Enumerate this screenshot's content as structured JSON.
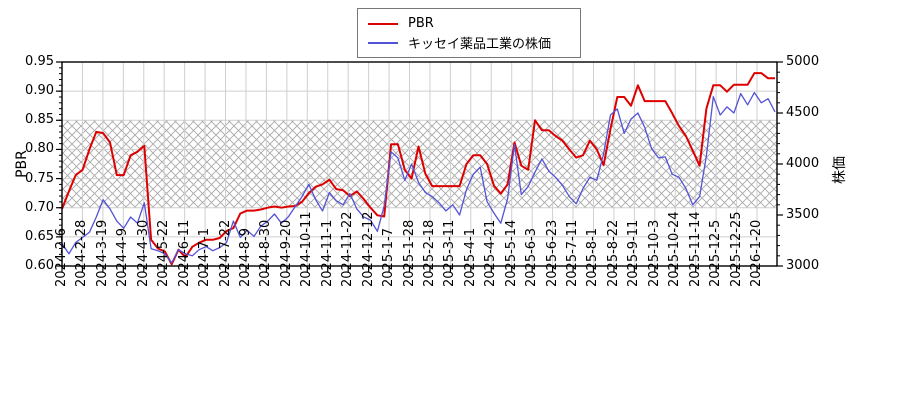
{
  "chart_data": {
    "type": "line",
    "title": "",
    "grid": true,
    "legend_position": "top-center",
    "left_axis": {
      "label": "PBR",
      "min": 0.6,
      "max": 0.95,
      "tick_values": [
        0.6,
        0.65,
        0.7,
        0.75,
        0.8,
        0.85,
        0.9,
        0.95
      ],
      "tick_labels": [
        "0.60",
        "0.65",
        "0.70",
        "0.75",
        "0.80",
        "0.85",
        "0.90",
        "0.95"
      ],
      "minor_step": 0.01
    },
    "right_axis": {
      "label": "株価",
      "min": 3000,
      "max": 5000,
      "tick_values": [
        3000,
        3500,
        4000,
        4500,
        5000
      ],
      "tick_labels": [
        "3000",
        "3500",
        "4000",
        "4500",
        "5000"
      ],
      "minor_step": 100
    },
    "x_ticks": [
      "2024-2-6",
      "2024-2-28",
      "2024-3-19",
      "2024-4-9",
      "2024-4-30",
      "2024-5-22",
      "2024-6-11",
      "2024-7-1",
      "2024-7-22",
      "2024-8-9",
      "2024-8-30",
      "2024-9-20",
      "2024-10-11",
      "2024-11-1",
      "2024-11-22",
      "2024-12-12",
      "2025-1-7",
      "2025-1-28",
      "2025-2-18",
      "2025-3-11",
      "2025-4-1",
      "2025-4-21",
      "2025-5-14",
      "2025-6-3",
      "2025-6-23",
      "2025-7-11",
      "2025-8-1",
      "2025-8-22",
      "2025-9-11",
      "2025-10-3",
      "2025-10-24",
      "2025-11-14",
      "2025-12-5",
      "2025-12-25",
      "2026-1-20"
    ],
    "band": {
      "axis": "left",
      "from": 0.7,
      "to": 0.85,
      "style": "crosshatch",
      "color": "#a8a8a8"
    },
    "colors": {
      "grid": "#cfcfcf",
      "axis": "#000000",
      "pbr": "#dd0000",
      "stock": "#5353d6"
    },
    "series": [
      {
        "name": "PBR",
        "axis": "left",
        "color": "#dd0000",
        "values": [
          0.698,
          0.728,
          0.756,
          0.765,
          0.8,
          0.83,
          0.828,
          0.812,
          0.756,
          0.756,
          0.79,
          0.796,
          0.806,
          0.645,
          0.63,
          0.625,
          0.603,
          0.628,
          0.615,
          0.633,
          0.64,
          0.645,
          0.645,
          0.648,
          0.66,
          0.665,
          0.69,
          0.695,
          0.695,
          0.697,
          0.7,
          0.702,
          0.7,
          0.702,
          0.703,
          0.71,
          0.725,
          0.736,
          0.74,
          0.748,
          0.732,
          0.73,
          0.72,
          0.728,
          0.715,
          0.7,
          0.687,
          0.685,
          0.809,
          0.809,
          0.765,
          0.75,
          0.805,
          0.758,
          0.737,
          0.737,
          0.737,
          0.737,
          0.737,
          0.775,
          0.79,
          0.79,
          0.775,
          0.738,
          0.724,
          0.74,
          0.812,
          0.772,
          0.765,
          0.85,
          0.833,
          0.833,
          0.823,
          0.815,
          0.8,
          0.786,
          0.79,
          0.815,
          0.8,
          0.773,
          0.835,
          0.89,
          0.89,
          0.875,
          0.91,
          0.883,
          0.883,
          0.883,
          0.883,
          0.862,
          0.84,
          0.823,
          0.798,
          0.772,
          0.87,
          0.91,
          0.91,
          0.899,
          0.911,
          0.911,
          0.911,
          0.931,
          0.931,
          0.922,
          0.922
        ]
      },
      {
        "name": "キッセイ薬品工業の株価",
        "axis": "right",
        "color": "#5353d6",
        "values": [
          3220,
          3120,
          3230,
          3280,
          3330,
          3480,
          3650,
          3560,
          3440,
          3370,
          3480,
          3420,
          3620,
          3170,
          3150,
          3120,
          3030,
          3160,
          3120,
          3100,
          3160,
          3190,
          3150,
          3180,
          3230,
          3440,
          3280,
          3350,
          3290,
          3390,
          3440,
          3510,
          3420,
          3480,
          3580,
          3680,
          3800,
          3650,
          3540,
          3720,
          3640,
          3600,
          3710,
          3560,
          3480,
          3450,
          3340,
          3590,
          4120,
          4060,
          3840,
          4000,
          3820,
          3720,
          3680,
          3620,
          3540,
          3600,
          3500,
          3750,
          3900,
          3970,
          3630,
          3520,
          3420,
          3660,
          4190,
          3700,
          3780,
          3920,
          4050,
          3930,
          3870,
          3790,
          3680,
          3610,
          3760,
          3870,
          3840,
          4100,
          4480,
          4540,
          4300,
          4440,
          4500,
          4360,
          4150,
          4060,
          4070,
          3900,
          3870,
          3760,
          3600,
          3680,
          4080,
          4660,
          4480,
          4560,
          4500,
          4690,
          4580,
          4700,
          4600,
          4640,
          4510
        ]
      }
    ]
  },
  "legend": {
    "entries": [
      {
        "label": "PBR",
        "color": "#dd0000"
      },
      {
        "label": "キッセイ薬品工業の株価",
        "color": "#5353d6"
      }
    ]
  }
}
